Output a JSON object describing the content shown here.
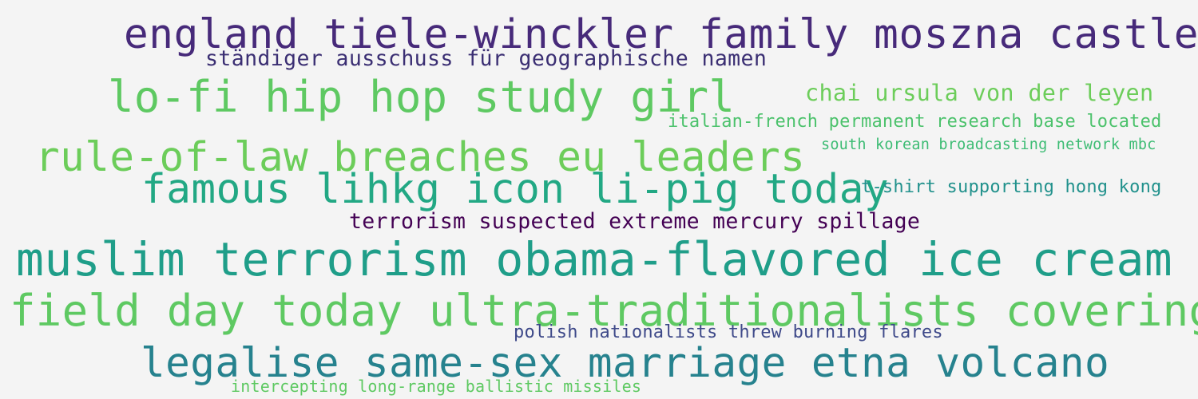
{
  "background": "#f4f4f4",
  "phrases": [
    {
      "id": "p1",
      "text": "england tiele-winckler family moszna castle",
      "color": "#472a7a"
    },
    {
      "id": "p2",
      "text": "ständiger ausschuss für geographische namen",
      "color": "#3b2f73"
    },
    {
      "id": "p3",
      "text": "lo-fi hip hop study girl",
      "color": "#5ec962"
    },
    {
      "id": "p4",
      "text": "chai ursula von der leyen",
      "color": "#6ccd5a"
    },
    {
      "id": "p5",
      "text": "italian-french permanent research base located",
      "color": "#4cc26c"
    },
    {
      "id": "p6",
      "text": "rule-of-law breaches eu leaders",
      "color": "#6ccd5a"
    },
    {
      "id": "p7",
      "text": "south korean broadcasting network mbc",
      "color": "#3dbc74"
    },
    {
      "id": "p8",
      "text": "famous lihkg icon li-pig today",
      "color": "#22a884"
    },
    {
      "id": "p9",
      "text": "t-shirt supporting hong kong",
      "color": "#21918c"
    },
    {
      "id": "p10",
      "text": "terrorism suspected extreme mercury spillage",
      "color": "#440154"
    },
    {
      "id": "p11",
      "text": "muslim terrorism obama-flavored ice cream",
      "color": "#1f9e89"
    },
    {
      "id": "p12",
      "text": "field day today ultra-traditionalists covering",
      "color": "#5ec962"
    },
    {
      "id": "p13",
      "text": "polish nationalists threw burning flares",
      "color": "#3e4989"
    },
    {
      "id": "p14",
      "text": "legalise same-sex marriage etna volcano",
      "color": "#26828e"
    },
    {
      "id": "p15",
      "text": "intercepting long-range ballistic missiles",
      "color": "#5ec962"
    }
  ]
}
